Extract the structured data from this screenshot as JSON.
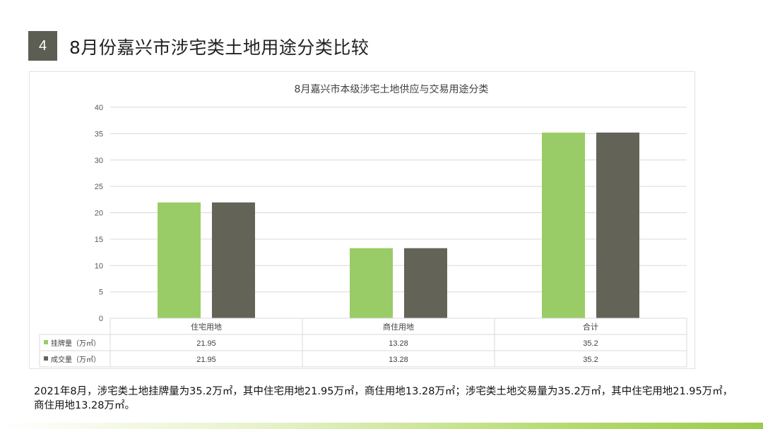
{
  "slide": {
    "number": "4",
    "title": "8月份嘉兴市涉宅类土地用途分类比较"
  },
  "summary": {
    "text": "2021年8月，涉宅类土地挂牌量为35.2万㎡，其中住宅用地21.95万㎡，商住用地13.28万㎡；涉宅类土地交易量为35.2万㎡，其中住宅用地21.95万㎡，商住用地13.28万㎡。"
  },
  "chart_data": {
    "type": "bar",
    "title": "8月嘉兴市本级涉宅土地供应与交易用途分类",
    "categories": [
      "住宅用地",
      "商住用地",
      "合计"
    ],
    "series": [
      {
        "name": "挂牌量（万㎡）",
        "values": [
          21.95,
          13.28,
          35.2
        ],
        "value_labels": [
          "21.95",
          "13.28",
          "35.2"
        ],
        "color": "#99cc66"
      },
      {
        "name": "成交量（万㎡）",
        "values": [
          21.95,
          13.28,
          35.2
        ],
        "value_labels": [
          "21.95",
          "13.28",
          "35.2"
        ],
        "color": "#636457"
      }
    ],
    "yticks": [
      0,
      5,
      10,
      15,
      20,
      25,
      30,
      35,
      40
    ],
    "ylim": [
      0,
      40
    ],
    "xlabel": "",
    "ylabel": "",
    "grid": true,
    "legend": "data-table"
  },
  "colors": {
    "badge": "#5c5e54",
    "gridline": "#d9d9d9",
    "stripe": "#9ccb4b"
  }
}
